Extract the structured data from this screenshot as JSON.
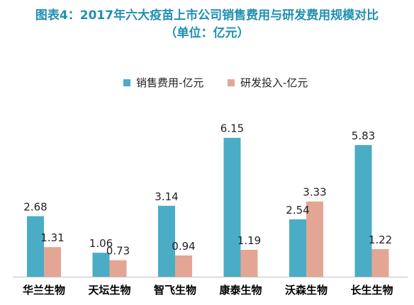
{
  "chart_data": {
    "type": "bar",
    "title_line1": "图表4：2017年六大疫苗上市公司销售费用与研发费用规模对比",
    "title_line2": "（单位：亿元）",
    "categories": [
      "华兰生物",
      "天坛生物",
      "智飞生物",
      "康泰生物",
      "沃森生物",
      "长生生物"
    ],
    "series": [
      {
        "name": "销售费用-亿元",
        "color": "#4bacc6",
        "values": [
          2.68,
          1.06,
          3.14,
          6.15,
          2.54,
          5.83
        ]
      },
      {
        "name": "研发投入-亿元",
        "color": "#e4a694",
        "values": [
          1.31,
          0.73,
          0.94,
          1.19,
          3.33,
          1.22
        ]
      }
    ],
    "value_labels": [
      [
        "2.68",
        "1.06",
        "3.14",
        "6.15",
        "2.54",
        "5.83"
      ],
      [
        "1.31",
        "0.73",
        "0.94",
        "1.19",
        "3.33",
        "1.22"
      ]
    ],
    "ylim": [
      0,
      6.8
    ],
    "grid": false,
    "legend_position": "top"
  }
}
